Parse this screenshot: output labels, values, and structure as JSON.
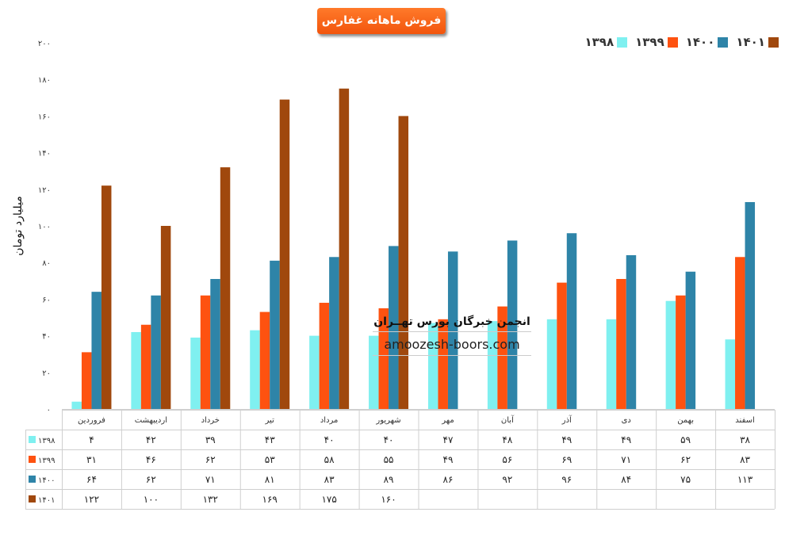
{
  "chart_data": {
    "type": "bar",
    "title": "فروش ماهانه غفارس",
    "ylabel": "میلیارد تومان",
    "ylim": [
      0,
      200
    ],
    "yticks": [
      "۰",
      "۲۰",
      "۴۰",
      "۶۰",
      "۸۰",
      "۱۰۰",
      "۱۲۰",
      "۱۴۰",
      "۱۶۰",
      "۱۸۰",
      "۲۰۰"
    ],
    "legend_position": "top-right",
    "categories": [
      "فروردین",
      "اردیبهشت",
      "خرداد",
      "تیر",
      "مرداد",
      "شهریور",
      "مهر",
      "آبان",
      "آذر",
      "دی",
      "بهمن",
      "اسفند"
    ],
    "series": [
      {
        "name": "۱۳۹۸",
        "color": "#7ff0f0",
        "values": [
          4,
          42,
          39,
          43,
          40,
          40,
          47,
          48,
          49,
          49,
          59,
          38
        ],
        "labels": [
          "۴",
          "۴۲",
          "۳۹",
          "۴۳",
          "۴۰",
          "۴۰",
          "۴۷",
          "۴۸",
          "۴۹",
          "۴۹",
          "۵۹",
          "۳۸"
        ]
      },
      {
        "name": "۱۳۹۹",
        "color": "#fe5210",
        "values": [
          31,
          46,
          62,
          53,
          58,
          55,
          49,
          56,
          69,
          71,
          62,
          83
        ],
        "labels": [
          "۳۱",
          "۴۶",
          "۶۲",
          "۵۳",
          "۵۸",
          "۵۵",
          "۴۹",
          "۵۶",
          "۶۹",
          "۷۱",
          "۶۲",
          "۸۳"
        ]
      },
      {
        "name": "۱۴۰۰",
        "color": "#2e84a8",
        "values": [
          64,
          62,
          71,
          81,
          83,
          89,
          86,
          92,
          96,
          84,
          75,
          113
        ],
        "labels": [
          "۶۴",
          "۶۲",
          "۷۱",
          "۸۱",
          "۸۳",
          "۸۹",
          "۸۶",
          "۹۲",
          "۹۶",
          "۸۴",
          "۷۵",
          "۱۱۳"
        ]
      },
      {
        "name": "۱۴۰۱",
        "color": "#a0480d",
        "values": [
          122,
          100,
          132,
          169,
          175,
          160,
          null,
          null,
          null,
          null,
          null,
          null
        ],
        "labels": [
          "۱۲۲",
          "۱۰۰",
          "۱۳۲",
          "۱۶۹",
          "۱۷۵",
          "۱۶۰",
          "",
          "",
          "",
          "",
          "",
          ""
        ]
      }
    ]
  },
  "legend": [
    {
      "label": "۱۴۰۱",
      "color": "#a0480d"
    },
    {
      "label": "۱۴۰۰",
      "color": "#2e84a8"
    },
    {
      "label": "۱۳۹۹",
      "color": "#fe5210"
    },
    {
      "label": "۱۳۹۸",
      "color": "#7ff0f0"
    }
  ],
  "watermark": {
    "title": "انجمن خبرگان بورس تهــران",
    "site": "amoozesh-boors.com"
  }
}
